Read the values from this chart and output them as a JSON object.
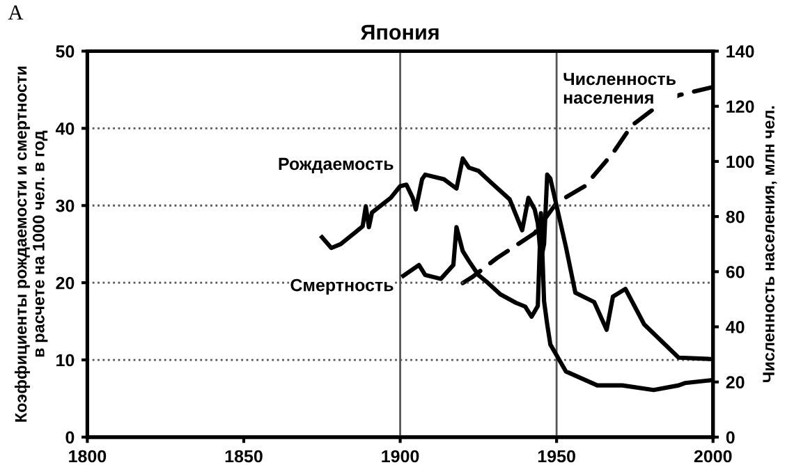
{
  "chart_data": {
    "type": "line",
    "title": "Япония",
    "ylabel": "Коэффициенты рождаемости и смертности\nв расчете на 1000 чел. в год",
    "y2label": "Численность населения, млн чел.",
    "annotations": [
      "A"
    ],
    "series": [
      {
        "name": "Рождаемость",
        "color": "#000000",
        "line_style": "solid",
        "x": [
          1875,
          1878,
          1881,
          1888,
          1889,
          1890,
          1891,
          1897,
          1900,
          1902,
          1904,
          1905,
          1907,
          1908,
          1914,
          1918,
          1920,
          1922,
          1925,
          1929,
          1935,
          1939,
          1941,
          1943,
          1944,
          1945,
          1946,
          1947,
          1948,
          1953,
          1956,
          1962,
          1966,
          1968,
          1972,
          1978,
          1989,
          2000
        ],
        "values": [
          25.9,
          24.5,
          25,
          27.3,
          29.9,
          27.2,
          29.1,
          31,
          32.5,
          32.7,
          31,
          29.5,
          33.4,
          34,
          33.4,
          32.2,
          36.1,
          34.9,
          34.5,
          33,
          30.8,
          26.8,
          31,
          29.5,
          27.7,
          23,
          25,
          34,
          33.5,
          24.6,
          18.7,
          17.5,
          13.9,
          18.2,
          19.2,
          14.6,
          10.3,
          10.1
        ]
      },
      {
        "name": "Смертность",
        "color": "#000000",
        "line_style": "solid",
        "x": [
          1901,
          1906,
          1908,
          1913,
          1917,
          1918,
          1920,
          1922,
          1925,
          1928,
          1932,
          1937,
          1940,
          1942,
          1944,
          1945,
          1946,
          1947,
          1948,
          1953,
          1963,
          1971,
          1981,
          1989,
          1991,
          2000
        ],
        "values": [
          20.9,
          22.3,
          21,
          20.5,
          22.3,
          27.2,
          24.1,
          22.8,
          21,
          20,
          18.5,
          17.4,
          16.9,
          15.6,
          17,
          29,
          17.6,
          14.6,
          12,
          8.5,
          6.7,
          6.7,
          6.1,
          6.7,
          7,
          7.4
        ]
      },
      {
        "name": "Численность населения",
        "color": "#000000",
        "line_style": "dashed",
        "axis": "y2",
        "x": [
          1920,
          1923,
          1931,
          1943,
          1950,
          1959,
          1968,
          1974,
          1981,
          1989,
          2000
        ],
        "values": [
          55.9,
          58,
          65,
          74,
          85,
          91,
          103,
          113,
          119,
          124,
          127
        ]
      }
    ],
    "xlim": [
      1800,
      2000
    ],
    "xticks": [
      1800,
      1850,
      1900,
      1950,
      2000
    ],
    "ylim": [
      0,
      50
    ],
    "yticks": [
      0,
      10,
      20,
      30,
      40,
      50
    ],
    "y2lim": [
      0,
      140
    ],
    "y2ticks": [
      0,
      20,
      40,
      60,
      80,
      100,
      120,
      140
    ],
    "grid": "y",
    "ref_lines": [
      {
        "axis": "x",
        "value": 1900,
        "color": "#555555"
      },
      {
        "axis": "x",
        "value": 1950,
        "color": "#555555"
      }
    ]
  }
}
